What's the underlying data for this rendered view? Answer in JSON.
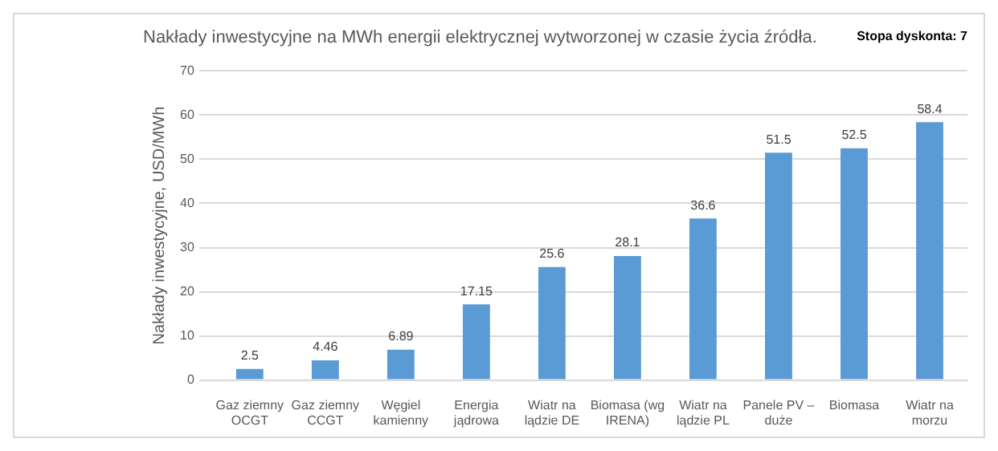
{
  "chart_data": {
    "type": "bar",
    "title": "Nakłady inwestycyjne na MWh energii elektrycznej wytworzonej w czasie życia źródła.",
    "ylabel": "Nakłady inwestycyjne, USD/MWh",
    "annotations": [
      "Stopa dyskonta: 7"
    ],
    "categories": [
      "Gaz ziemny OCGT",
      "Gaz ziemny CCGT",
      "Węgiel kamienny",
      "Energia jądrowa",
      "Wiatr na lądzie DE",
      "Biomasa (wg IRENA)",
      "Wiatr na lądzie PL",
      "Panele PV – duże",
      "Biomasa",
      "Wiatr na morzu"
    ],
    "values": [
      2.5,
      4.46,
      6.89,
      17.15,
      25.6,
      28.1,
      36.6,
      51.5,
      52.5,
      58.4
    ],
    "color": "#5b9bd5",
    "ylim": [
      0,
      70
    ],
    "yticks": [
      0,
      10,
      20,
      30,
      40,
      50,
      60,
      70
    ],
    "grid": "y",
    "data_labels": true,
    "legend": false
  }
}
